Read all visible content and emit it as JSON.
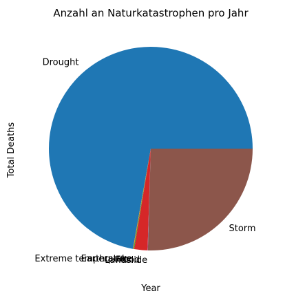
{
  "chart_data": {
    "type": "pie",
    "title": "Anzahl an Naturkatastrophen pro Jahr",
    "xlabel": "Year",
    "ylabel": "Total Deaths",
    "start_angle_deg": 0,
    "direction": "counterclockwise",
    "slices": [
      {
        "label": "Drought",
        "value": 72.2,
        "color": "#1f77b4"
      },
      {
        "label": "Extreme temperature",
        "value": 0.1,
        "color": "#ff7f0e"
      },
      {
        "label": "Earthquake",
        "value": 0.1,
        "color": "#2ca02c"
      },
      {
        "label": "Flood",
        "value": 2.1,
        "color": "#d62728"
      },
      {
        "label": "Landslide",
        "value": 0.05,
        "color": "#9467bd"
      },
      {
        "label": "Storm",
        "value": 25.45,
        "color": "#8c564b"
      }
    ]
  }
}
